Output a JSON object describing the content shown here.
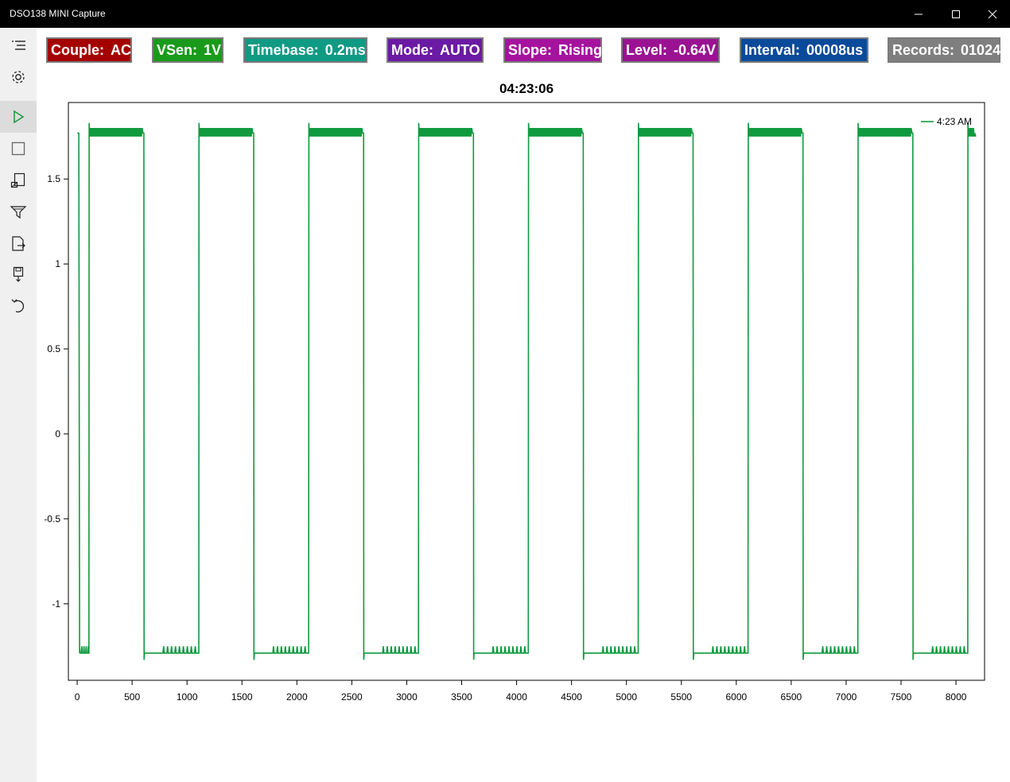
{
  "window": {
    "title": "DSO138 MINI Capture",
    "controls": [
      "minimize-icon",
      "maximize-icon",
      "close-icon"
    ]
  },
  "sidebar": {
    "items": [
      {
        "name": "menu",
        "icon": "hamburger-menu-icon"
      },
      {
        "name": "settings",
        "icon": "gear-icon"
      },
      {
        "name": "run",
        "icon": "play-icon",
        "active": true
      },
      {
        "name": "stop",
        "icon": "stop-icon"
      },
      {
        "name": "capture",
        "icon": "capture-icon"
      },
      {
        "name": "filter",
        "icon": "funnel-icon"
      },
      {
        "name": "export",
        "icon": "file-export-icon"
      },
      {
        "name": "save",
        "icon": "save-icon"
      },
      {
        "name": "undo",
        "icon": "undo-icon"
      }
    ]
  },
  "status": {
    "couple": {
      "label": "Couple:",
      "value": "AC",
      "color": "#a50000"
    },
    "vsen": {
      "label": "VSen:",
      "value": "1V",
      "color": "#1a9a1a"
    },
    "timebase": {
      "label": "Timebase:",
      "value": "0.2ms",
      "color": "#0f9a84"
    },
    "mode": {
      "label": "Mode:",
      "value": "AUTO",
      "color": "#6b1aa3"
    },
    "slope": {
      "label": "Slope:",
      "value": "Rising",
      "color": "#a5129e"
    },
    "level": {
      "label": "Level:",
      "value": "-0.64V",
      "color": "#9a1292"
    },
    "interval": {
      "label": "Interval:",
      "value": "00008us",
      "color": "#0a4a9a"
    },
    "records": {
      "label": "Records:",
      "value": "01024",
      "color": "#7f7f7f"
    }
  },
  "chart_data": {
    "type": "line",
    "title": "04:23:06",
    "xlim": [
      -80,
      8260
    ],
    "ylim": [
      -1.45,
      1.95
    ],
    "x_ticks": [
      0,
      500,
      1000,
      1500,
      2000,
      2500,
      3000,
      3500,
      4000,
      4500,
      5000,
      5500,
      6000,
      6500,
      7000,
      7500,
      8000
    ],
    "y_ticks": [
      -1,
      -0.5,
      0,
      0.5,
      1,
      1.5
    ],
    "y_tick_labels": [
      "-1",
      "-0.5",
      "0",
      "0.5",
      "1",
      "1.5"
    ],
    "legend": "top-right",
    "grid": false,
    "series": [
      {
        "name": "4:23 AM",
        "color": "#109a40",
        "high_level": 1.77,
        "low_level": -1.29,
        "period": 1000,
        "duty_high": 500,
        "first_rise": 107,
        "end": 8180
      }
    ]
  }
}
